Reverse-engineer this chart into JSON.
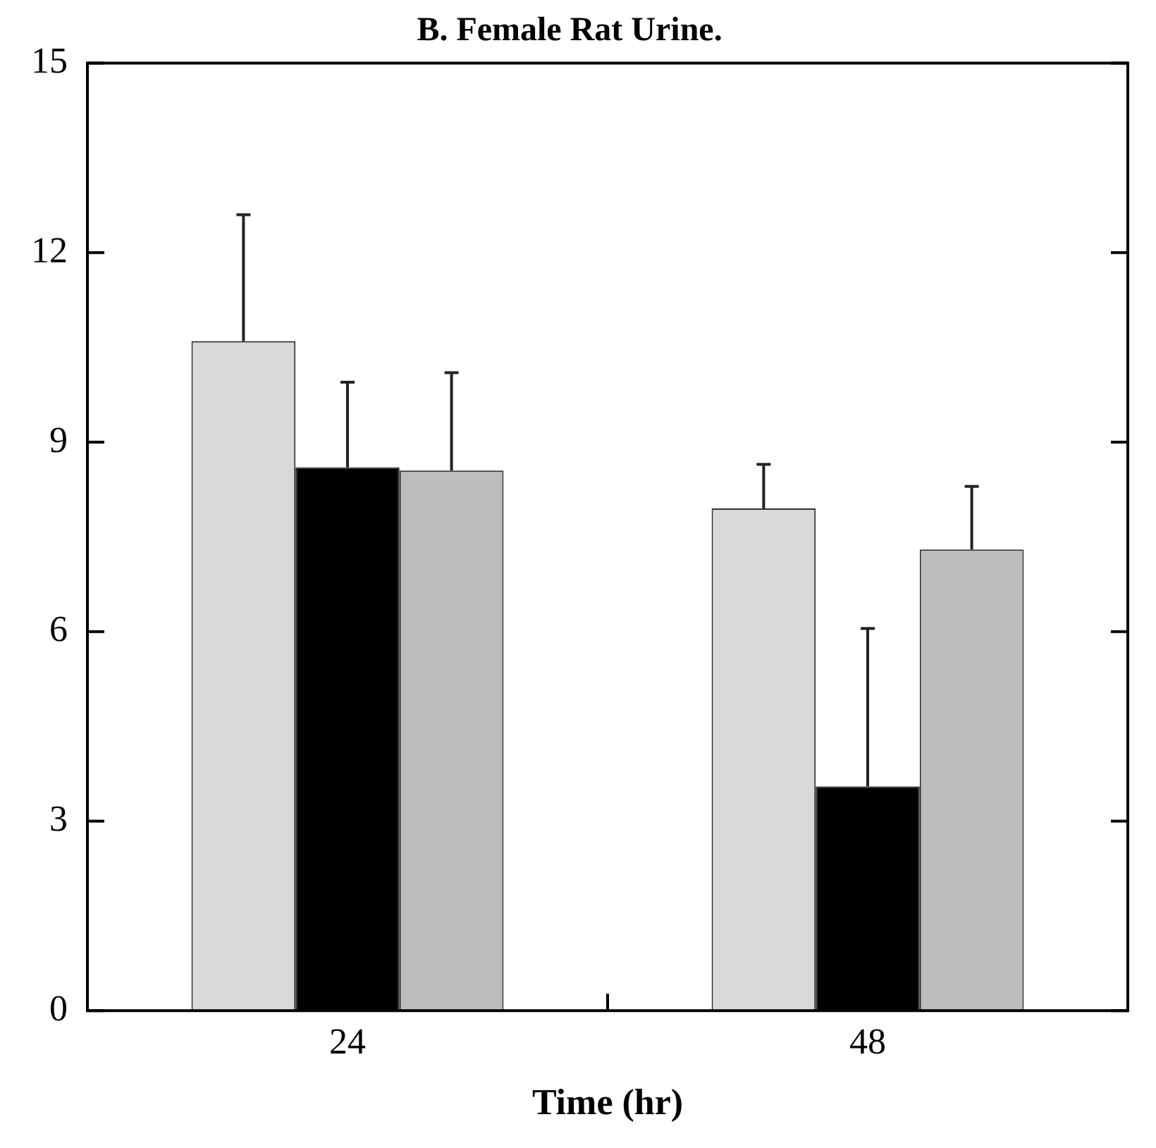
{
  "chart_data": {
    "type": "bar",
    "title": "B. Female Rat Urine.",
    "xlabel": "Time (hr)",
    "categories": [
      "24",
      "48"
    ],
    "series": [
      {
        "color": "#d9d9d9",
        "values": [
          10.6,
          7.95
        ],
        "errors": [
          [
            10.6,
            12.6
          ],
          [
            7.95,
            8.65
          ]
        ]
      },
      {
        "color": "#000000",
        "values": [
          8.6,
          3.55
        ],
        "errors": [
          [
            8.6,
            9.95
          ],
          [
            3.55,
            6.05
          ]
        ]
      },
      {
        "color": "#bdbdbd",
        "values": [
          8.55,
          7.3
        ],
        "errors": [
          [
            8.55,
            10.1
          ],
          [
            7.3,
            8.3
          ]
        ]
      }
    ],
    "ylim": [
      0,
      15
    ],
    "yticks": [
      0,
      3,
      6,
      9,
      12,
      15
    ],
    "grid": false,
    "legend": false
  }
}
